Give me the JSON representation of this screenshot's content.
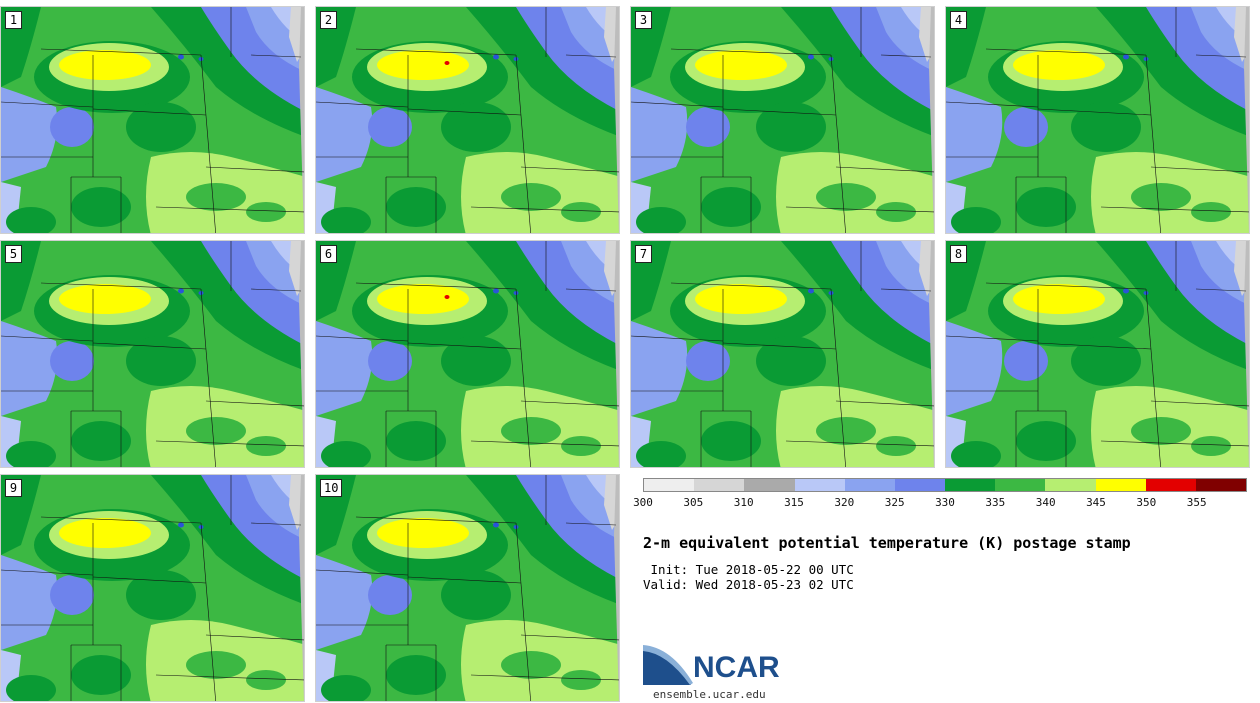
{
  "colors": {
    "bins": [
      "#eeeeee",
      "#d6d6d6",
      "#aaaaaa",
      "#b9c8f7",
      "#8aa3f0",
      "#6e83ec",
      "#0a9b34",
      "#3cb843",
      "#b6ee71",
      "#ffff00",
      "#e30000",
      "#800000"
    ],
    "water": "#2a54d8",
    "coast": "#bdbdbd",
    "border": "#111111"
  },
  "panels": [
    {
      "label": "1",
      "core_label": "low"
    },
    {
      "label": "2",
      "core_label": "mid"
    },
    {
      "label": "3",
      "core_label": "low"
    },
    {
      "label": "4",
      "core_label": "low"
    },
    {
      "label": "5",
      "core_label": "low"
    },
    {
      "label": "6",
      "core_label": "mid"
    },
    {
      "label": "7",
      "core_label": "low"
    },
    {
      "label": "8",
      "core_label": "low"
    },
    {
      "label": "9",
      "core_label": "low"
    },
    {
      "label": "10",
      "core_label": "low"
    }
  ],
  "colorbar": {
    "ticks": [
      "300",
      "305",
      "310",
      "315",
      "320",
      "325",
      "330",
      "335",
      "340",
      "345",
      "350",
      "355"
    ]
  },
  "title": "2-m equivalent potential temperature (K) postage stamp",
  "init": " Init: Tue 2018-05-22 00 UTC",
  "valid": "Valid: Wed 2018-05-23 02 UTC",
  "logo": {
    "word": "NCAR",
    "url": "ensemble.ucar.edu"
  }
}
